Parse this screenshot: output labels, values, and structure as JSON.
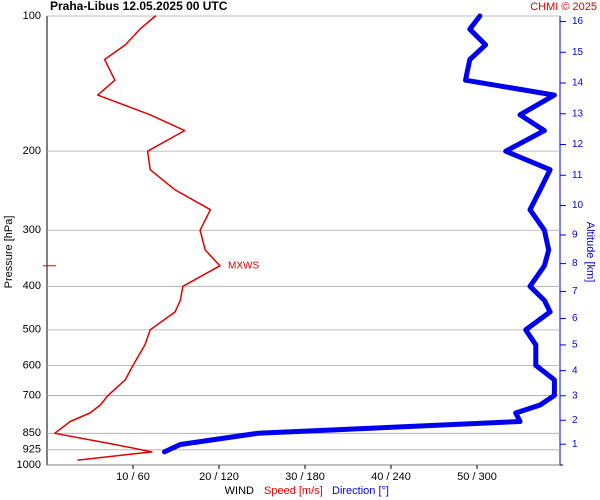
{
  "chart_data": {
    "type": "line",
    "title": "Praha-Libus    12.05.2025 00 UTC",
    "copyright": "CHMI © 2025",
    "y_label": "Pressure [hPa]",
    "y2_label": "Altitude [km]",
    "x_label": "WIND",
    "x_label_speed": "Speed [m/s]",
    "x_label_direction": "Direction [°]",
    "y_scale": "log",
    "grid": true,
    "ylim": [
      100,
      1000
    ],
    "yticks": [
      100,
      200,
      300,
      400,
      500,
      600,
      700,
      850,
      925,
      1000
    ],
    "y2ticks": [
      1,
      2,
      3,
      4,
      5,
      6,
      7,
      8,
      9,
      10,
      11,
      12,
      13,
      14,
      15,
      16
    ],
    "xlim": [
      0,
      60
    ],
    "x2lim": [
      0,
      360
    ],
    "xticks": [
      {
        "value": 10,
        "label": "10 / 60"
      },
      {
        "value": 20,
        "label": "20 / 120"
      },
      {
        "value": 30,
        "label": "30 / 180"
      },
      {
        "value": 40,
        "label": "40 / 240"
      },
      {
        "value": 50,
        "label": "50 / 300"
      }
    ],
    "pressure": [
      100,
      107,
      116,
      125,
      139,
      150,
      166,
      180,
      200,
      220,
      244,
      270,
      300,
      332,
      360,
      400,
      430,
      456,
      500,
      540,
      600,
      646,
      700,
      735,
      766,
      800,
      850,
      900,
      935,
      975
    ],
    "series": [
      {
        "name": "Speed [m/s]",
        "color": "#e00000",
        "values": [
          12.6,
          10.8,
          9.1,
          6.7,
          7.9,
          5.9,
          12,
          16,
          11.7,
          12,
          14.9,
          19,
          17.8,
          18.4,
          20.1,
          15.8,
          15.5,
          14.9,
          12,
          11.4,
          10,
          9.1,
          7.1,
          6.2,
          5,
          2.7,
          0.9,
          7.9,
          12.2,
          3.6
        ]
      },
      {
        "name": "Direction [°]",
        "color": "#0000ee",
        "axis": "x2",
        "values": [
          302,
          295,
          306,
          295,
          292,
          354,
          330,
          347,
          320,
          351,
          344,
          337,
          347,
          350,
          347,
          337,
          347,
          351,
          334,
          341,
          341,
          354,
          354,
          344,
          327,
          330,
          147,
          93,
          82,
          null
        ]
      }
    ],
    "annotation": {
      "text": "MXWS",
      "pressure": 360
    }
  }
}
